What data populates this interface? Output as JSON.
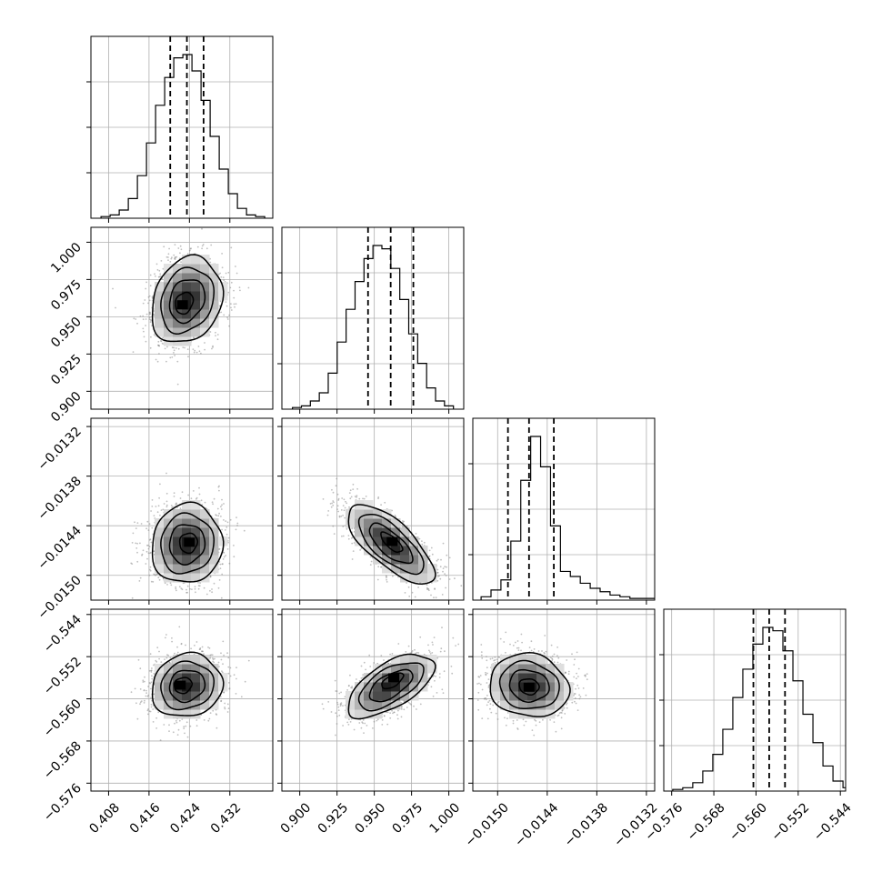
{
  "chart_data": {
    "type": "corner",
    "grid": true,
    "colors": {
      "points": "#8a8a8a",
      "lines": "#000000",
      "quantile": "#000000"
    },
    "parameters": [
      {
        "range": [
          0.4045,
          0.4405
        ],
        "ticks": [
          0.408,
          0.416,
          0.424,
          0.432
        ],
        "tick_labels": [
          "0.408",
          "0.416",
          "0.424",
          "0.432"
        ],
        "center": 0.4235,
        "sigma": 0.0035
      },
      {
        "range": [
          0.888,
          1.01
        ],
        "ticks": [
          0.9,
          0.925,
          0.95,
          0.975,
          1.0
        ],
        "tick_labels": [
          "0.900",
          "0.925",
          "0.950",
          "0.975",
          "1.000"
        ],
        "center": 0.961,
        "sigma": 0.0145
      },
      {
        "range": [
          -0.0153,
          -0.0131
        ],
        "ticks": [
          -0.015,
          -0.0144,
          -0.0138,
          -0.0132
        ],
        "tick_labels": [
          "−0.0150",
          "−0.0144",
          "−0.0138",
          "−0.0132"
        ],
        "center": -0.01462,
        "sigma": 0.00024
      },
      {
        "range": [
          -0.5775,
          -0.543
        ],
        "ticks": [
          -0.576,
          -0.568,
          -0.56,
          -0.552,
          -0.544
        ],
        "tick_labels": [
          "−0.576",
          "−0.568",
          "−0.560",
          "−0.552",
          "−0.544"
        ],
        "center": -0.5575,
        "sigma": 0.003
      }
    ],
    "histograms": [
      {
        "param": 0,
        "bins": [
          0.4065,
          0.4083,
          0.4101,
          0.4119,
          0.4137,
          0.4155,
          0.4173,
          0.4191,
          0.4209,
          0.4227,
          0.4245,
          0.4263,
          0.4281,
          0.4299,
          0.4317,
          0.4335,
          0.4353,
          0.4371,
          0.4389
        ],
        "counts": [
          0.01,
          0.02,
          0.05,
          0.12,
          0.26,
          0.46,
          0.69,
          0.86,
          0.98,
          1.0,
          0.9,
          0.72,
          0.5,
          0.3,
          0.15,
          0.06,
          0.02,
          0.01
        ],
        "quantiles": [
          0.4202,
          0.4235,
          0.4268
        ]
      },
      {
        "param": 1,
        "bins": [
          0.8951,
          0.9011,
          0.9071,
          0.9131,
          0.9191,
          0.9251,
          0.9311,
          0.9371,
          0.9431,
          0.9491,
          0.9551,
          0.9611,
          0.9671,
          0.9731,
          0.9791,
          0.9851,
          0.9911,
          0.9971,
          1.0031
        ],
        "counts": [
          0.01,
          0.02,
          0.05,
          0.1,
          0.22,
          0.41,
          0.61,
          0.78,
          0.92,
          1.0,
          0.98,
          0.86,
          0.67,
          0.46,
          0.28,
          0.13,
          0.05,
          0.02
        ],
        "quantiles": [
          0.9458,
          0.961,
          0.9762
        ]
      },
      {
        "param": 2,
        "bins": [
          -0.0152,
          -0.01508,
          -0.01496,
          -0.01484,
          -0.01472,
          -0.0146,
          -0.01448,
          -0.01436,
          -0.01424,
          -0.01412,
          -0.014,
          -0.01388,
          -0.01376,
          -0.01364,
          -0.01352,
          -0.0134,
          -0.01328,
          -0.01316,
          -0.01304
        ],
        "counts": [
          0.02,
          0.06,
          0.12,
          0.35,
          0.71,
          0.97,
          0.79,
          0.44,
          0.17,
          0.14,
          0.1,
          0.07,
          0.05,
          0.03,
          0.02,
          0.01,
          0.01,
          0.01
        ],
        "quantiles": [
          -0.014875,
          -0.01462,
          -0.01432
        ]
      },
      {
        "param": 3,
        "bins": [
          -0.5758,
          -0.5739,
          -0.572,
          -0.5701,
          -0.5682,
          -0.5663,
          -0.5644,
          -0.5625,
          -0.5606,
          -0.5587,
          -0.5568,
          -0.5549,
          -0.553,
          -0.5511,
          -0.5492,
          -0.5473,
          -0.5454,
          -0.5435,
          -0.5416
        ],
        "counts": [
          0.01,
          0.02,
          0.05,
          0.12,
          0.22,
          0.37,
          0.56,
          0.73,
          0.88,
          0.98,
          0.96,
          0.84,
          0.66,
          0.46,
          0.29,
          0.15,
          0.06,
          0.02
        ],
        "quantiles": [
          -0.5605,
          -0.5575,
          -0.5545
        ]
      }
    ],
    "pairs": [
      {
        "x": 0,
        "y": 1,
        "correlation": 0.2,
        "peak": [
          0.4226,
          0.958
        ],
        "contour_sigma_levels": [
          0.5,
          1.0,
          1.5,
          2.0
        ]
      },
      {
        "x": 0,
        "y": 2,
        "correlation": 0.05,
        "peak": [
          0.424,
          -0.0146
        ],
        "contour_sigma_levels": [
          0.5,
          1.0,
          1.5,
          2.0
        ]
      },
      {
        "x": 1,
        "y": 2,
        "correlation": -0.72,
        "peak": [
          0.962,
          -0.01459
        ],
        "contour_sigma_levels": [
          0.5,
          1.0,
          1.5,
          2.0
        ]
      },
      {
        "x": 0,
        "y": 3,
        "correlation": 0.1,
        "peak": [
          0.4222,
          -0.5574
        ],
        "contour_sigma_levels": [
          0.5,
          1.0,
          1.5,
          2.0
        ]
      },
      {
        "x": 1,
        "y": 3,
        "correlation": 0.62,
        "peak": [
          0.963,
          -0.556
        ],
        "contour_sigma_levels": [
          0.5,
          1.0,
          1.5,
          2.0
        ]
      },
      {
        "x": 2,
        "y": 3,
        "correlation": -0.1,
        "peak": [
          -0.01462,
          -0.5578
        ],
        "contour_sigma_levels": [
          0.5,
          1.0,
          1.5,
          2.0
        ]
      }
    ]
  }
}
